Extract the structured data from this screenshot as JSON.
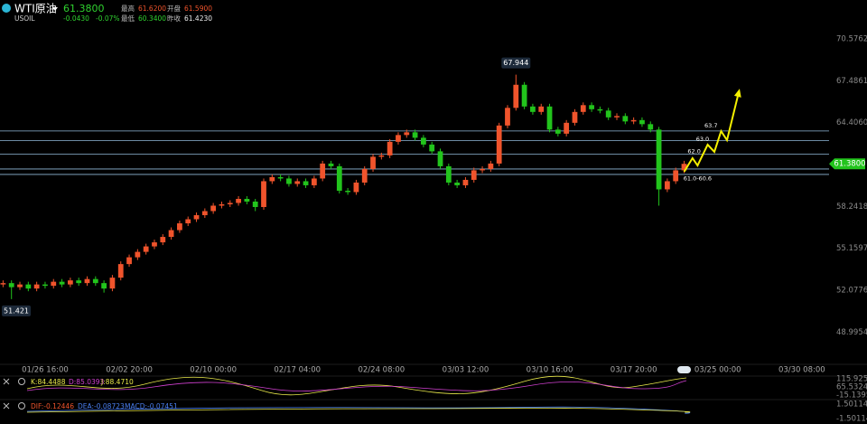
{
  "chart_data": {
    "type": "candlestick",
    "symbol": "WTI原油",
    "code": "USOIL",
    "price": {
      "value": 61.38,
      "label": "61.3800"
    },
    "change": "-0.0430",
    "change_pct": "-0.07%",
    "stats": [
      {
        "label": "最高",
        "value": "61.6200"
      },
      {
        "label": "开盘",
        "value": "61.5900"
      },
      {
        "label": "最低",
        "value": "60.3400"
      },
      {
        "label": "昨收",
        "value": "61.4230"
      }
    ],
    "up_color": "#f0542c",
    "down_color": "#22c41c",
    "x": [
      -5,
      -4,
      -3,
      -2,
      -1,
      0,
      1,
      2,
      3,
      4,
      5,
      6,
      7,
      8,
      9,
      10,
      11,
      12,
      13,
      14,
      15,
      16,
      17,
      18,
      19,
      20,
      21,
      22,
      23,
      24,
      25,
      26,
      27,
      28,
      29,
      30,
      31,
      32,
      33,
      34,
      35,
      36,
      37,
      38,
      39,
      40,
      41,
      42,
      43,
      44,
      45,
      46,
      47,
      48,
      49,
      50,
      51,
      52,
      53,
      54,
      55,
      56,
      57,
      58,
      59,
      60,
      61,
      62,
      63,
      64,
      65,
      66,
      67,
      68,
      69,
      70,
      71,
      72,
      73,
      74,
      75,
      76
    ],
    "open": [
      52.5,
      52.6,
      52.3,
      52.5,
      52.2,
      52.5,
      52.4,
      52.7,
      52.5,
      52.8,
      52.6,
      52.9,
      52.6,
      52.2,
      53.0,
      54.0,
      54.5,
      54.9,
      55.3,
      55.6,
      56.0,
      56.5,
      57.0,
      57.3,
      57.6,
      57.9,
      58.3,
      58.4,
      58.5,
      58.8,
      58.6,
      58.2,
      60.1,
      60.4,
      60.3,
      59.9,
      60.1,
      59.8,
      60.3,
      61.4,
      61.2,
      59.4,
      59.3,
      60.0,
      61.0,
      61.9,
      62.0,
      63.0,
      63.5,
      63.7,
      63.3,
      62.8,
      62.3,
      61.2,
      60.0,
      59.8,
      60.2,
      60.9,
      61.0,
      61.4,
      64.2,
      65.5,
      67.2,
      65.6,
      65.2,
      65.6,
      63.9,
      63.6,
      64.4,
      65.2,
      65.7,
      65.4,
      65.3,
      64.8,
      64.9,
      64.5,
      64.6,
      64.3,
      63.9,
      59.5,
      60.1,
      60.9
    ],
    "high": [
      52.8,
      52.8,
      52.7,
      52.7,
      52.7,
      52.7,
      52.9,
      52.9,
      53.0,
      53.0,
      53.1,
      53.1,
      52.8,
      53.2,
      54.2,
      54.7,
      55.1,
      55.5,
      55.8,
      56.2,
      56.7,
      57.2,
      57.5,
      57.8,
      58.1,
      58.5,
      58.6,
      58.7,
      59.0,
      59.0,
      58.8,
      60.3,
      60.6,
      60.6,
      60.5,
      60.3,
      60.3,
      60.5,
      61.6,
      61.6,
      61.4,
      59.6,
      60.2,
      61.2,
      62.1,
      62.2,
      63.2,
      63.7,
      63.9,
      63.9,
      63.5,
      63.0,
      62.5,
      61.4,
      60.2,
      60.4,
      61.1,
      61.2,
      61.6,
      64.4,
      65.7,
      67.944,
      67.4,
      65.8,
      65.8,
      65.8,
      64.1,
      64.6,
      65.4,
      65.9,
      65.9,
      65.6,
      65.5,
      65.1,
      65.1,
      64.8,
      64.8,
      64.5,
      64.1,
      60.3,
      61.1,
      61.6
    ],
    "low": [
      52.3,
      51.421,
      52.1,
      52.0,
      52.0,
      52.2,
      52.2,
      52.3,
      52.3,
      52.4,
      52.4,
      52.4,
      51.9,
      52.0,
      52.8,
      53.8,
      54.3,
      54.7,
      55.1,
      55.4,
      55.8,
      56.3,
      56.8,
      57.1,
      57.4,
      57.7,
      58.1,
      58.2,
      58.3,
      58.4,
      57.9,
      58.0,
      59.9,
      60.1,
      59.7,
      59.7,
      59.6,
      59.6,
      60.1,
      61.0,
      59.2,
      59.1,
      59.1,
      59.8,
      60.8,
      61.7,
      61.8,
      62.8,
      63.3,
      63.1,
      62.6,
      62.1,
      61.0,
      59.8,
      59.6,
      59.6,
      60.0,
      60.7,
      60.8,
      61.2,
      64.0,
      65.3,
      65.4,
      65.0,
      65.0,
      63.7,
      63.4,
      63.4,
      64.2,
      65.0,
      65.2,
      65.1,
      64.6,
      64.6,
      64.3,
      64.3,
      64.1,
      63.7,
      58.3,
      59.3,
      59.9,
      60.7
    ],
    "close": [
      52.6,
      52.3,
      52.5,
      52.2,
      52.5,
      52.4,
      52.7,
      52.5,
      52.8,
      52.6,
      52.9,
      52.6,
      52.2,
      53.0,
      54.0,
      54.5,
      54.9,
      55.3,
      55.6,
      56.0,
      56.5,
      57.0,
      57.3,
      57.6,
      57.9,
      58.3,
      58.4,
      58.5,
      58.8,
      58.6,
      58.2,
      60.1,
      60.4,
      60.3,
      59.9,
      60.1,
      59.8,
      60.3,
      61.4,
      61.2,
      59.4,
      59.3,
      60.0,
      61.0,
      61.9,
      62.0,
      63.0,
      63.5,
      63.7,
      63.3,
      62.8,
      62.3,
      61.2,
      60.0,
      59.8,
      60.2,
      60.9,
      61.0,
      61.4,
      64.2,
      65.5,
      67.2,
      65.6,
      65.2,
      65.6,
      63.9,
      63.6,
      64.4,
      65.2,
      65.7,
      65.4,
      65.3,
      64.8,
      64.9,
      64.5,
      64.6,
      64.3,
      63.9,
      59.5,
      60.1,
      60.9,
      61.38
    ],
    "hlines": [
      63.8,
      63.1,
      62.1,
      61.0,
      60.6
    ],
    "hline_color": "#8fb8d8",
    "projection": {
      "color": "#f5f000",
      "x": [
        76,
        77,
        77.6,
        78.8,
        79.6,
        80.4,
        81.1,
        82.5
      ],
      "values": [
        60.8,
        61.8,
        61.26,
        62.79,
        62.26,
        63.79,
        63.12,
        66.65
      ]
    },
    "annotations": [
      {
        "text": "61.0-60.6",
        "x": 77.6,
        "y": 60.3
      },
      {
        "text": "62.0",
        "x": 77.2,
        "y": 62.3
      },
      {
        "text": "63.0",
        "x": 78.2,
        "y": 63.2
      },
      {
        "text": "63.7",
        "x": 79.2,
        "y": 64.2
      }
    ],
    "xlim": [
      -5,
      97
    ],
    "ylim": [
      46.82,
      73.44
    ],
    "xticks": [
      {
        "value": 0,
        "label": "01/26 16:00"
      },
      {
        "value": 10,
        "label": "02/02 20:00"
      },
      {
        "value": 20,
        "label": "02/10 00:00"
      },
      {
        "value": 30,
        "label": "02/17 04:00"
      },
      {
        "value": 40,
        "label": "02/24 08:00"
      },
      {
        "value": 50,
        "label": "03/03 12:00"
      },
      {
        "value": 60,
        "label": "03/10 16:00"
      },
      {
        "value": 70,
        "label": "03/17 20:00"
      },
      {
        "value": 80,
        "label": "03/25 00:00"
      },
      {
        "value": 90,
        "label": "03/30 08:00"
      }
    ],
    "yticks": [
      70.5762,
      67.4861,
      {
        "value": 64.406,
        "label": "64.4060"
      },
      58.2418,
      55.1597,
      52.0776,
      48.9954
    ],
    "kdj": {
      "labels": [
        "K:84.4488",
        "D:85.0393",
        "J:88.4710"
      ],
      "scale": [
        "115.925",
        "65.5324",
        "-15.1395"
      ]
    },
    "macd": {
      "labels": [
        "DIF:-0.12446",
        "DEA:-0.08723",
        "MACD:-0.07451"
      ],
      "scale": [
        "1.50114",
        "-1.50114"
      ]
    }
  }
}
